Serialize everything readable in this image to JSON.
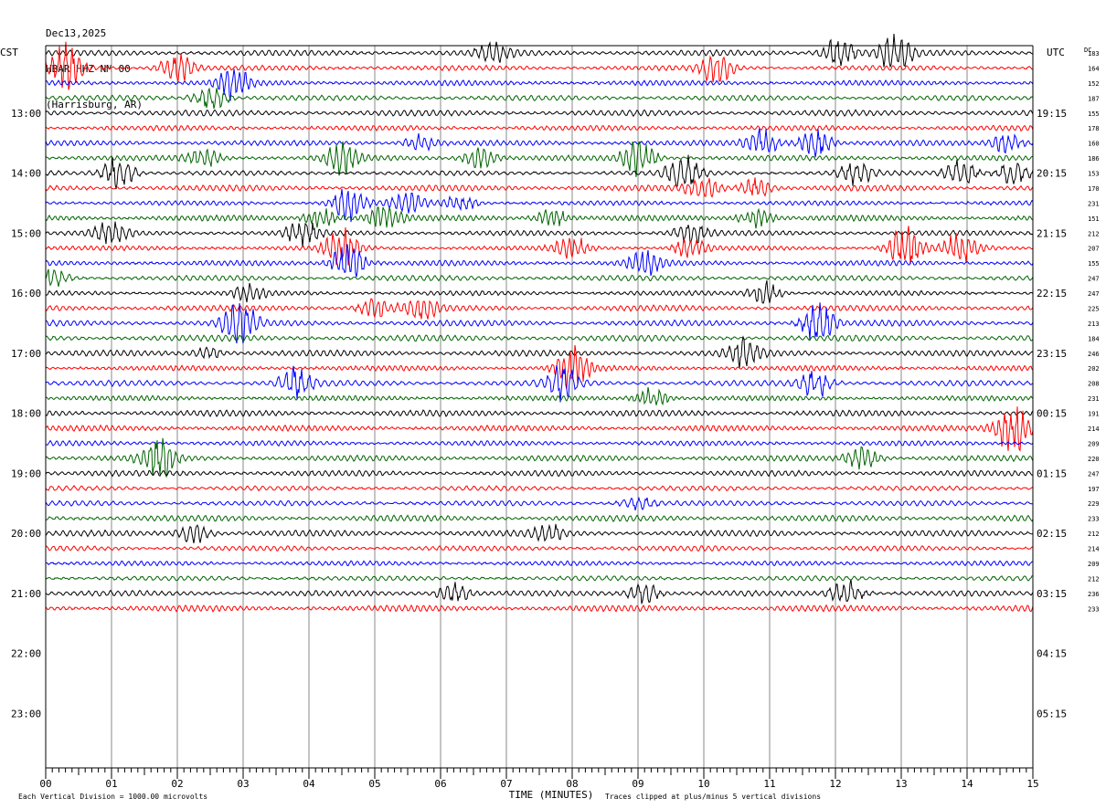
{
  "header": {
    "date": "Dec13,2025",
    "station": "HBAR HHZ NM 00",
    "location": "(Harrisburg, AR)"
  },
  "labels": {
    "left_tz": "CST",
    "right_tz": "UTC",
    "dc_label": "DC",
    "xlabel": "TIME (MINUTES)",
    "footer_left": "Each Vertical Division = 1000.00 microvolts",
    "footer_right": "Traces clipped at plus/minus 5 vertical divisions"
  },
  "chart_data": {
    "type": "line",
    "description_kind": "helicorder",
    "x_ticks": [
      "00",
      "01",
      "02",
      "03",
      "04",
      "05",
      "06",
      "07",
      "08",
      "09",
      "10",
      "11",
      "12",
      "13",
      "14",
      "15"
    ],
    "xlim": [
      0,
      15
    ],
    "minutes_per_line": 15,
    "left_hour_labels": [
      "13:00",
      "14:00",
      "15:00",
      "16:00",
      "17:00",
      "18:00",
      "19:00",
      "20:00",
      "21:00",
      "22:00",
      "23:00"
    ],
    "right_hour_labels": [
      "19:15",
      "20:15",
      "21:15",
      "22:15",
      "23:15",
      "00:15",
      "01:15",
      "02:15",
      "03:15",
      "04:15",
      "05:15"
    ],
    "trace_colors": [
      "#000000",
      "#ff0000",
      "#0000ff",
      "#006400"
    ],
    "trace_count": 38,
    "dc_offsets": [
      183,
      164,
      152,
      187,
      155,
      178,
      160,
      186,
      153,
      170,
      231,
      151,
      212,
      207,
      155,
      247,
      247,
      225,
      213,
      184,
      246,
      202,
      208,
      231,
      191,
      214,
      209,
      220,
      247,
      197,
      229,
      233,
      212,
      214,
      209,
      212,
      236,
      233
    ],
    "events": [
      {
        "trace": 0,
        "minute": 6.8,
        "amp": 0.5
      },
      {
        "trace": 0,
        "minute": 12.05,
        "amp": 0.8
      },
      {
        "trace": 0,
        "minute": 12.9,
        "amp": 1.0
      },
      {
        "trace": 1,
        "minute": 0.3,
        "amp": 1.2
      },
      {
        "trace": 1,
        "minute": 2.0,
        "amp": 0.8
      },
      {
        "trace": 1,
        "minute": 10.2,
        "amp": 0.8
      },
      {
        "trace": 2,
        "minute": 2.85,
        "amp": 0.8
      },
      {
        "trace": 3,
        "minute": 2.5,
        "amp": 0.6
      },
      {
        "trace": 6,
        "minute": 5.7,
        "amp": 0.4
      },
      {
        "trace": 6,
        "minute": 10.9,
        "amp": 0.7
      },
      {
        "trace": 6,
        "minute": 11.7,
        "amp": 0.7
      },
      {
        "trace": 6,
        "minute": 14.6,
        "amp": 0.5
      },
      {
        "trace": 7,
        "minute": 2.4,
        "amp": 0.5
      },
      {
        "trace": 7,
        "minute": 4.5,
        "amp": 0.8
      },
      {
        "trace": 7,
        "minute": 6.6,
        "amp": 0.6
      },
      {
        "trace": 7,
        "minute": 9.0,
        "amp": 0.9
      },
      {
        "trace": 8,
        "minute": 1.1,
        "amp": 0.8
      },
      {
        "trace": 8,
        "minute": 9.7,
        "amp": 0.9
      },
      {
        "trace": 8,
        "minute": 12.3,
        "amp": 0.6
      },
      {
        "trace": 8,
        "minute": 13.9,
        "amp": 0.7
      },
      {
        "trace": 8,
        "minute": 14.7,
        "amp": 0.6
      },
      {
        "trace": 9,
        "minute": 10.0,
        "amp": 0.6
      },
      {
        "trace": 9,
        "minute": 10.8,
        "amp": 0.5
      },
      {
        "trace": 10,
        "minute": 4.6,
        "amp": 0.9
      },
      {
        "trace": 10,
        "minute": 5.5,
        "amp": 0.5
      },
      {
        "trace": 10,
        "minute": 6.3,
        "amp": 0.4
      },
      {
        "trace": 11,
        "minute": 4.2,
        "amp": 0.5
      },
      {
        "trace": 11,
        "minute": 5.15,
        "amp": 0.7
      },
      {
        "trace": 11,
        "minute": 7.7,
        "amp": 0.5
      },
      {
        "trace": 11,
        "minute": 10.8,
        "amp": 0.5
      },
      {
        "trace": 12,
        "minute": 1.0,
        "amp": 0.6
      },
      {
        "trace": 12,
        "minute": 3.9,
        "amp": 0.7
      },
      {
        "trace": 12,
        "minute": 9.8,
        "amp": 0.5
      },
      {
        "trace": 13,
        "minute": 4.5,
        "amp": 1.0
      },
      {
        "trace": 13,
        "minute": 8.0,
        "amp": 0.6
      },
      {
        "trace": 13,
        "minute": 9.8,
        "amp": 0.5
      },
      {
        "trace": 13,
        "minute": 13.05,
        "amp": 1.2
      },
      {
        "trace": 13,
        "minute": 13.9,
        "amp": 0.8
      },
      {
        "trace": 14,
        "minute": 4.6,
        "amp": 1.1
      },
      {
        "trace": 14,
        "minute": 9.1,
        "amp": 0.6
      },
      {
        "trace": 15,
        "minute": 0.1,
        "amp": 0.5
      },
      {
        "trace": 16,
        "minute": 3.1,
        "amp": 0.4
      },
      {
        "trace": 16,
        "minute": 10.95,
        "amp": 0.6
      },
      {
        "trace": 17,
        "minute": 5.0,
        "amp": 0.5
      },
      {
        "trace": 17,
        "minute": 5.7,
        "amp": 0.6
      },
      {
        "trace": 18,
        "minute": 2.95,
        "amp": 1.2
      },
      {
        "trace": 18,
        "minute": 11.75,
        "amp": 1.1
      },
      {
        "trace": 20,
        "minute": 2.5,
        "amp": 0.3
      },
      {
        "trace": 20,
        "minute": 10.6,
        "amp": 0.7
      },
      {
        "trace": 21,
        "minute": 8.0,
        "amp": 1.1
      },
      {
        "trace": 22,
        "minute": 3.8,
        "amp": 0.8
      },
      {
        "trace": 22,
        "minute": 7.85,
        "amp": 0.9
      },
      {
        "trace": 22,
        "minute": 11.7,
        "amp": 0.7
      },
      {
        "trace": 23,
        "minute": 9.2,
        "amp": 0.5
      },
      {
        "trace": 25,
        "minute": 14.7,
        "amp": 1.3
      },
      {
        "trace": 27,
        "minute": 1.7,
        "amp": 1.2
      },
      {
        "trace": 27,
        "minute": 12.4,
        "amp": 0.6
      },
      {
        "trace": 30,
        "minute": 9.0,
        "amp": 0.3
      },
      {
        "trace": 32,
        "minute": 2.25,
        "amp": 0.5
      },
      {
        "trace": 32,
        "minute": 7.65,
        "amp": 0.4
      },
      {
        "trace": 36,
        "minute": 6.2,
        "amp": 0.5
      },
      {
        "trace": 36,
        "minute": 9.1,
        "amp": 0.5
      },
      {
        "trace": 36,
        "minute": 12.15,
        "amp": 0.7
      }
    ]
  }
}
